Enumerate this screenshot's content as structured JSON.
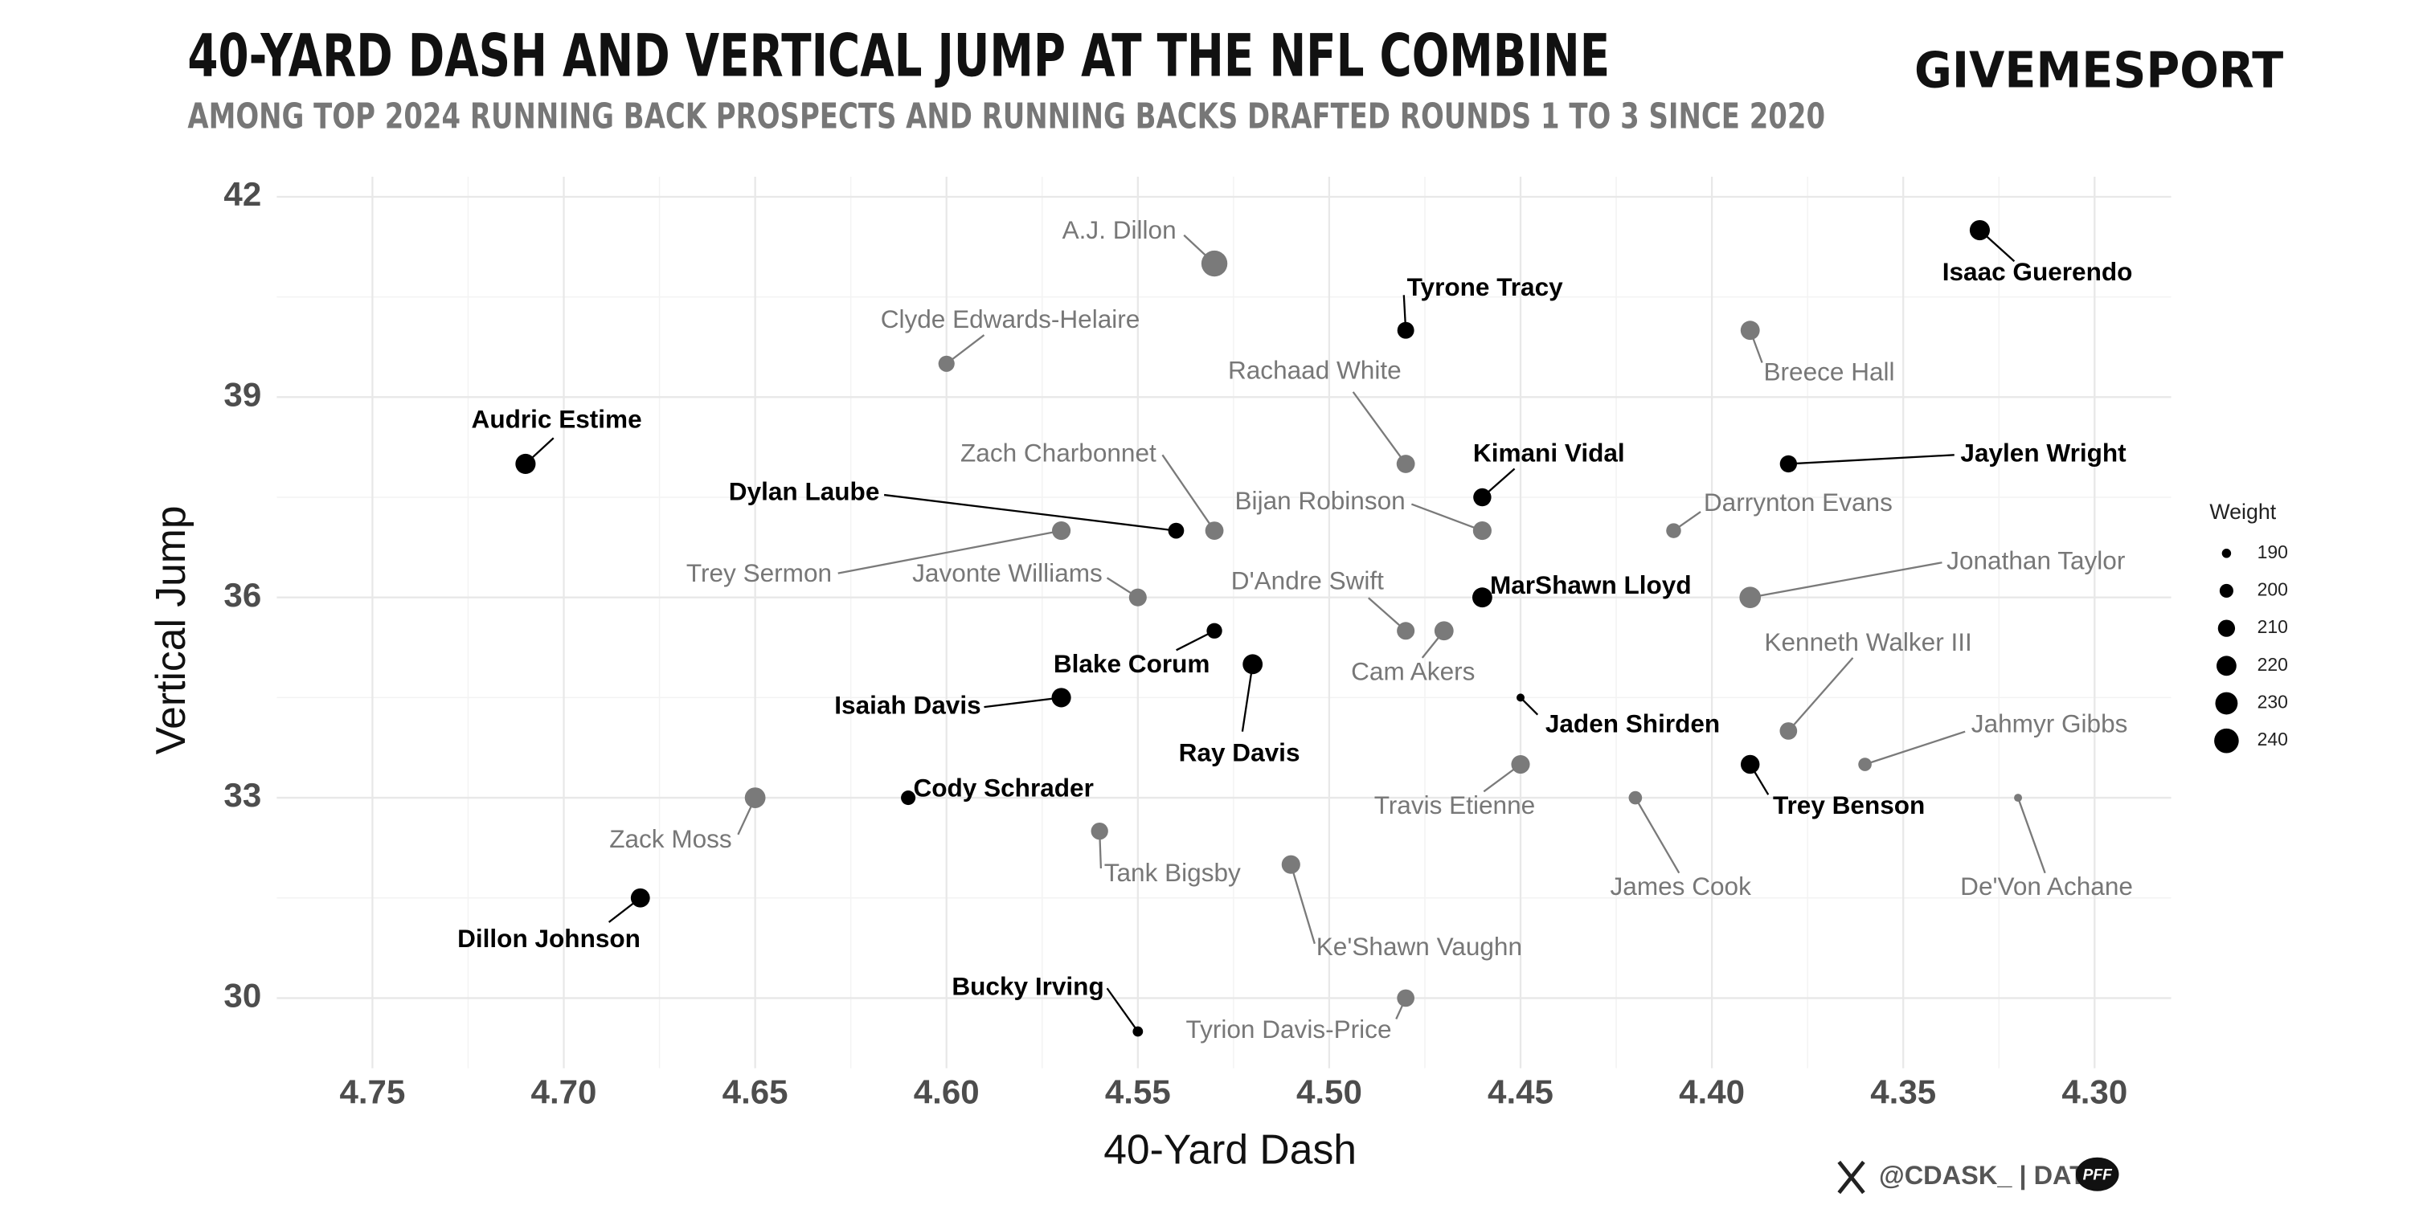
{
  "chart_data": {
    "type": "scatter",
    "title": "40-YARD DASH AND VERTICAL JUMP AT THE NFL COMBINE",
    "subtitle": "AMONG TOP 2024 RUNNING BACK PROSPECTS AND RUNNING BACKS DRAFTED ROUNDS 1 TO 3 SINCE 2020",
    "brand": "GIVEMESPORT",
    "footer": "@CDASK_  |  DATA",
    "source_logo": "PFF",
    "x_label": "40-Yard Dash",
    "y_label": "Vertical Jump",
    "xlim": [
      4.775,
      4.28
    ],
    "ylim": [
      28.95,
      42.3
    ],
    "xticks": [
      {
        "value": 4.75,
        "label": "4.75"
      },
      {
        "value": 4.7,
        "label": "4.70"
      },
      {
        "value": 4.65,
        "label": "4.65"
      },
      {
        "value": 4.6,
        "label": "4.60"
      },
      {
        "value": 4.55,
        "label": "4.55"
      },
      {
        "value": 4.5,
        "label": "4.50"
      },
      {
        "value": 4.45,
        "label": "4.45"
      },
      {
        "value": 4.4,
        "label": "4.40"
      },
      {
        "value": 4.35,
        "label": "4.35"
      },
      {
        "value": 4.3,
        "label": "4.30"
      }
    ],
    "yticks": [
      30,
      33,
      36,
      39,
      42
    ],
    "grid": true,
    "size_legend": {
      "title": "Weight",
      "values": [
        190,
        200,
        210,
        220,
        230,
        240
      ]
    },
    "points": [
      {
        "label": "A.J. Dillon",
        "x": 4.53,
        "y": 41,
        "size": 247,
        "color": "#7a7a7a"
      },
      {
        "label": "Tyrone Tracy",
        "x": 4.48,
        "y": 40,
        "size": 209,
        "color": "#000000"
      },
      {
        "label": "Isaac Guerendo",
        "x": 4.33,
        "y": 41.5,
        "size": 221,
        "color": "#000000"
      },
      {
        "label": "Clyde Edwards-Helaire",
        "x": 4.6,
        "y": 39.5,
        "size": 207,
        "color": "#7a7a7a"
      },
      {
        "label": "Breece Hall",
        "x": 4.39,
        "y": 40,
        "size": 217,
        "color": "#7a7a7a"
      },
      {
        "label": "Audric Estime",
        "x": 4.71,
        "y": 38,
        "size": 221,
        "color": "#000000"
      },
      {
        "label": "Rachaad White",
        "x": 4.48,
        "y": 38,
        "size": 214,
        "color": "#7a7a7a"
      },
      {
        "label": "Kimani Vidal",
        "x": 4.46,
        "y": 37.5,
        "size": 213,
        "color": "#000000"
      },
      {
        "label": "Jaylen Wright",
        "x": 4.38,
        "y": 38,
        "size": 210,
        "color": "#000000"
      },
      {
        "label": "Zach Charbonnet",
        "x": 4.53,
        "y": 37,
        "size": 214,
        "color": "#7a7a7a"
      },
      {
        "label": "Dylan Laube",
        "x": 4.54,
        "y": 37,
        "size": 206,
        "color": "#000000"
      },
      {
        "label": "Bijan Robinson",
        "x": 4.46,
        "y": 37,
        "size": 215,
        "color": "#7a7a7a"
      },
      {
        "label": "Darrynton Evans",
        "x": 4.41,
        "y": 37,
        "size": 203,
        "color": "#7a7a7a"
      },
      {
        "label": "Trey Sermon",
        "x": 4.57,
        "y": 37,
        "size": 215,
        "color": "#7a7a7a"
      },
      {
        "label": "Javonte Williams",
        "x": 4.55,
        "y": 36,
        "size": 212,
        "color": "#7a7a7a"
      },
      {
        "label": "D'Andre Swift",
        "x": 4.48,
        "y": 35.5,
        "size": 212,
        "color": "#7a7a7a"
      },
      {
        "label": "Cam Akers",
        "x": 4.47,
        "y": 35.5,
        "size": 217,
        "color": "#7a7a7a"
      },
      {
        "label": "MarShawn Lloyd",
        "x": 4.46,
        "y": 36,
        "size": 220,
        "color": "#000000"
      },
      {
        "label": "Jonathan Taylor",
        "x": 4.39,
        "y": 36,
        "size": 226,
        "color": "#7a7a7a"
      },
      {
        "label": "Blake Corum",
        "x": 4.53,
        "y": 35.5,
        "size": 205,
        "color": "#000000"
      },
      {
        "label": "Ray Davis",
        "x": 4.52,
        "y": 35,
        "size": 220,
        "color": "#000000"
      },
      {
        "label": "Isaiah Davis",
        "x": 4.57,
        "y": 34.5,
        "size": 218,
        "color": "#000000"
      },
      {
        "label": "Jaden Shirden",
        "x": 4.45,
        "y": 34.5,
        "size": 188,
        "color": "#000000"
      },
      {
        "label": "Kenneth Walker III",
        "x": 4.38,
        "y": 34,
        "size": 211,
        "color": "#7a7a7a"
      },
      {
        "label": "Jahmyr Gibbs",
        "x": 4.36,
        "y": 33.5,
        "size": 199,
        "color": "#7a7a7a"
      },
      {
        "label": "Trey Benson",
        "x": 4.39,
        "y": 33.5,
        "size": 216,
        "color": "#000000"
      },
      {
        "label": "Travis Etienne",
        "x": 4.45,
        "y": 33.5,
        "size": 215,
        "color": "#7a7a7a"
      },
      {
        "label": "Zack Moss",
        "x": 4.65,
        "y": 33,
        "size": 223,
        "color": "#7a7a7a"
      },
      {
        "label": "Cody Schrader",
        "x": 4.61,
        "y": 33,
        "size": 202,
        "color": "#000000"
      },
      {
        "label": "James Cook",
        "x": 4.42,
        "y": 33,
        "size": 199,
        "color": "#7a7a7a"
      },
      {
        "label": "De'Von Achane",
        "x": 4.32,
        "y": 33,
        "size": 188,
        "color": "#7a7a7a"
      },
      {
        "label": "Tank Bigsby",
        "x": 4.56,
        "y": 32.5,
        "size": 210,
        "color": "#7a7a7a"
      },
      {
        "label": "Ke'Shawn Vaughn",
        "x": 4.51,
        "y": 32,
        "size": 215,
        "color": "#7a7a7a"
      },
      {
        "label": "Dillon Johnson",
        "x": 4.68,
        "y": 31.5,
        "size": 217,
        "color": "#000000"
      },
      {
        "label": "Tyrion Davis-Price",
        "x": 4.48,
        "y": 30,
        "size": 211,
        "color": "#7a7a7a"
      },
      {
        "label": "Bucky Irving",
        "x": 4.55,
        "y": 29.5,
        "size": 192,
        "color": "#000000"
      }
    ]
  }
}
